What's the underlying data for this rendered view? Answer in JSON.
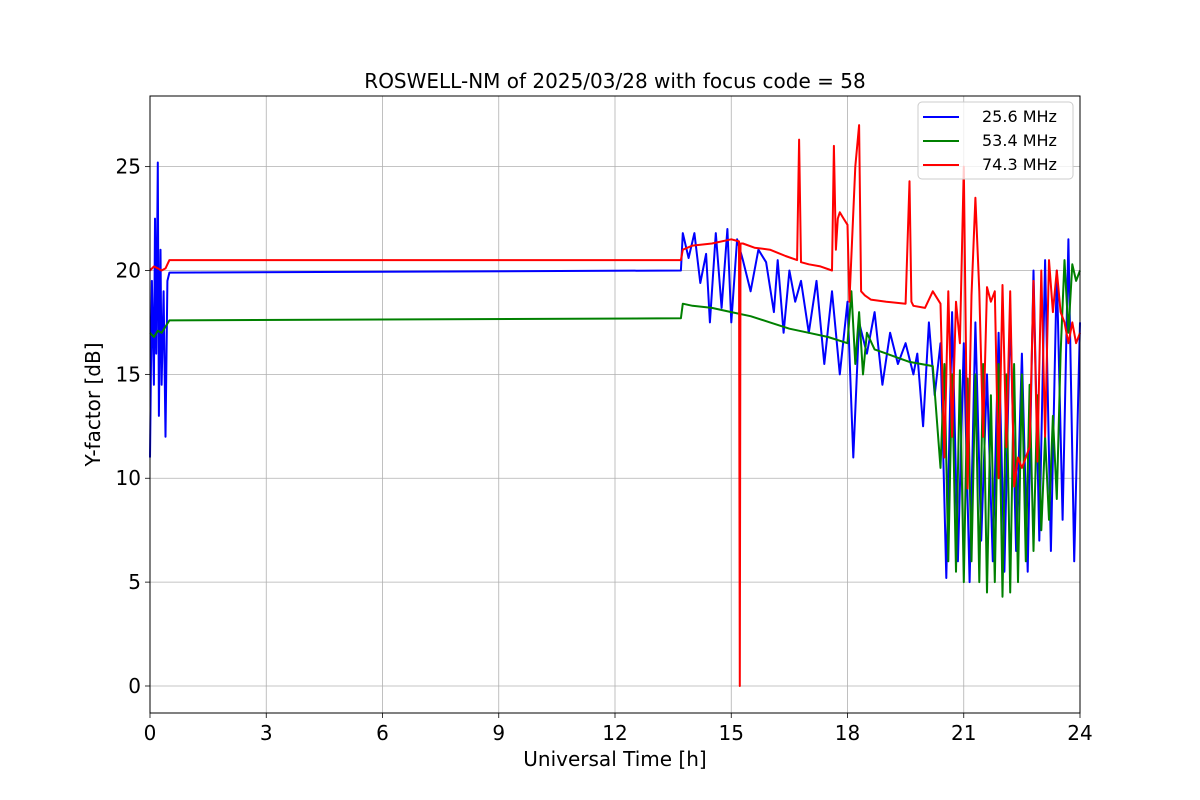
{
  "chart_data": {
    "type": "line",
    "title": "ROSWELL-NM of 2025/03/28 with focus code = 58",
    "xlabel": "Universal Time [h]",
    "ylabel": "Y-factor [dB]",
    "xlim": [
      0,
      24
    ],
    "ylim": [
      -1.3,
      28.4
    ],
    "x_ticks": [
      0,
      3,
      6,
      9,
      12,
      15,
      18,
      21,
      24
    ],
    "y_ticks": [
      0,
      5,
      10,
      15,
      20,
      25
    ],
    "grid": true,
    "legend_position": "top-right",
    "series": [
      {
        "name": "25.6 MHz",
        "color": "#0000ff",
        "x": [
          0.0,
          0.05,
          0.1,
          0.13,
          0.16,
          0.2,
          0.23,
          0.27,
          0.3,
          0.35,
          0.4,
          0.45,
          0.5,
          13.7,
          13.75,
          13.9,
          14.05,
          14.2,
          14.35,
          14.45,
          14.6,
          14.75,
          14.9,
          15.0,
          15.15,
          15.3,
          15.5,
          15.7,
          15.9,
          16.1,
          16.2,
          16.35,
          16.5,
          16.65,
          16.8,
          17.0,
          17.2,
          17.4,
          17.6,
          17.8,
          18.0,
          18.15,
          18.3,
          18.5,
          18.7,
          18.9,
          19.1,
          19.3,
          19.5,
          19.7,
          19.8,
          19.95,
          20.1,
          20.25,
          20.4,
          20.55,
          20.7,
          20.85,
          21.0,
          21.15,
          21.3,
          21.45,
          21.6,
          21.75,
          21.9,
          22.05,
          22.2,
          22.35,
          22.5,
          22.65,
          22.8,
          22.95,
          23.1,
          23.25,
          23.4,
          23.55,
          23.7,
          23.85,
          24.0
        ],
        "y": [
          11,
          19.5,
          14.5,
          22.5,
          16,
          25.2,
          13,
          21,
          14.5,
          19,
          12,
          19.5,
          19.9,
          20.0,
          21.8,
          20.6,
          21.8,
          19.4,
          20.8,
          17.5,
          21.8,
          18.2,
          22.0,
          17.5,
          21.5,
          20.5,
          19.0,
          21.0,
          20.4,
          18.0,
          20.5,
          17.0,
          20.0,
          18.5,
          19.5,
          17.0,
          19.5,
          15.5,
          19.0,
          15.0,
          18.5,
          11.0,
          17.5,
          16.0,
          18.0,
          14.5,
          17.0,
          15.5,
          16.5,
          15.0,
          16.0,
          12.5,
          17.5,
          14.0,
          16.5,
          5.2,
          18.0,
          6.0,
          16.5,
          5.0,
          17.5,
          7.0,
          15.0,
          6.0,
          17.0,
          5.5,
          18.0,
          6.5,
          16.0,
          5.5,
          20.0,
          7.0,
          20.5,
          6.5,
          20.0,
          8.0,
          21.5,
          6.0,
          17.5
        ]
      },
      {
        "name": "53.4 MHz",
        "color": "#008000",
        "x": [
          0.0,
          0.1,
          0.2,
          0.3,
          0.4,
          0.5,
          13.7,
          13.75,
          14.0,
          14.5,
          15.0,
          15.5,
          16.0,
          16.5,
          17.0,
          17.5,
          18.0,
          18.1,
          18.2,
          18.3,
          18.4,
          18.5,
          18.7,
          19.0,
          19.3,
          19.6,
          19.9,
          20.2,
          20.4,
          20.5,
          20.6,
          20.7,
          20.8,
          20.9,
          21.0,
          21.1,
          21.2,
          21.3,
          21.4,
          21.5,
          21.6,
          21.7,
          21.8,
          21.9,
          22.0,
          22.1,
          22.2,
          22.3,
          22.4,
          22.5,
          22.6,
          22.7,
          22.8,
          22.9,
          23.0,
          23.1,
          23.2,
          23.3,
          23.4,
          23.5,
          23.6,
          23.7,
          23.8,
          23.9,
          24.0
        ],
        "y": [
          17.0,
          16.8,
          17.1,
          17.0,
          17.3,
          17.6,
          17.7,
          18.4,
          18.3,
          18.2,
          18.0,
          17.8,
          17.5,
          17.2,
          17.0,
          16.8,
          16.5,
          19.0,
          15.5,
          18.0,
          15.0,
          17.0,
          16.2,
          16.0,
          15.8,
          15.6,
          15.5,
          15.4,
          10.5,
          15.5,
          6.0,
          15.0,
          5.5,
          15.2,
          5.0,
          14.8,
          6.0,
          15.0,
          5.0,
          15.5,
          4.5,
          14.0,
          5.0,
          15.5,
          4.3,
          15.0,
          4.5,
          15.5,
          5.0,
          15.0,
          6.0,
          14.5,
          6.5,
          14.0,
          7.5,
          12.0,
          8.0,
          13.0,
          9.0,
          16.0,
          20.5,
          17.0,
          20.3,
          19.5,
          20.0
        ]
      },
      {
        "name": "74.3 MHz",
        "color": "#ff0000",
        "x": [
          0.0,
          0.1,
          0.2,
          0.3,
          0.4,
          0.5,
          13.7,
          13.75,
          14.0,
          14.5,
          15.0,
          15.2,
          15.22,
          15.24,
          15.3,
          15.6,
          16.0,
          16.4,
          16.7,
          16.75,
          16.8,
          17.0,
          17.3,
          17.6,
          17.65,
          17.7,
          17.75,
          17.8,
          17.9,
          18.0,
          18.05,
          18.2,
          18.3,
          18.35,
          18.45,
          18.6,
          19.0,
          19.5,
          19.6,
          19.65,
          19.7,
          20.0,
          20.2,
          20.4,
          20.5,
          20.6,
          20.7,
          20.8,
          20.9,
          21.0,
          21.1,
          21.2,
          21.3,
          21.4,
          21.5,
          21.6,
          21.7,
          21.8,
          21.9,
          22.0,
          22.1,
          22.2,
          22.3,
          22.4,
          22.5,
          22.6,
          22.7,
          22.8,
          22.9,
          23.0,
          23.1,
          23.2,
          23.3,
          23.4,
          23.5,
          23.6,
          23.7,
          23.8,
          23.9,
          24.0
        ],
        "y": [
          20.0,
          20.2,
          20.1,
          20.0,
          20.1,
          20.5,
          20.5,
          21.0,
          21.2,
          21.3,
          21.5,
          21.4,
          0.0,
          21.3,
          21.3,
          21.1,
          21.0,
          20.7,
          20.5,
          26.3,
          20.4,
          20.3,
          20.2,
          20.0,
          26.0,
          21.0,
          22.5,
          22.8,
          22.5,
          22.2,
          18.5,
          25.0,
          27.0,
          19.0,
          18.8,
          18.6,
          18.5,
          18.4,
          24.3,
          18.5,
          18.3,
          18.2,
          19.0,
          18.4,
          11.0,
          19.0,
          12.0,
          18.5,
          16.5,
          25.0,
          9.5,
          18.8,
          23.5,
          19.0,
          12.0,
          19.2,
          18.5,
          19.0,
          10.0,
          19.3,
          11.5,
          19.0,
          9.6,
          11.0,
          10.5,
          11.0,
          11.5,
          19.5,
          10.8,
          20.0,
          12.0,
          20.5,
          18.0,
          20.0,
          18.0,
          17.5,
          16.5,
          17.5,
          16.5,
          17.0
        ]
      }
    ]
  }
}
